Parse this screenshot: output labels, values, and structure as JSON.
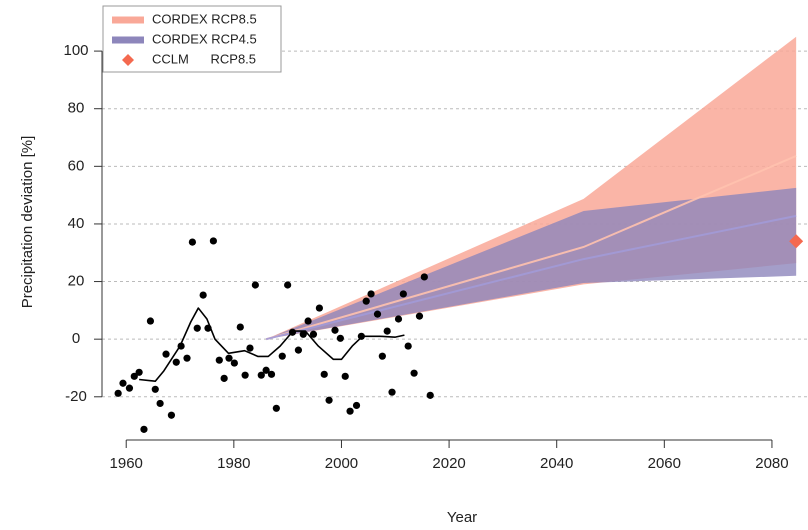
{
  "chart_data": {
    "type": "projection",
    "xlabel": "Year",
    "ylabel": "Precipitation deviation [%]",
    "xlim": [
      1955.5,
      2086.7
    ],
    "ylim": [
      -35,
      116
    ],
    "xticks": [
      1960,
      1980,
      2000,
      2020,
      2040,
      2060,
      2080
    ],
    "yticks": [
      -20,
      0,
      20,
      40,
      60,
      80,
      100
    ],
    "grid": true,
    "legend": "top-left",
    "series": [
      {
        "name": "CORDEX RCP8.5",
        "color": "#f9a898",
        "x": [
          1986,
          2045,
          2084.5
        ],
        "lower": [
          0,
          19,
          26.4
        ],
        "upper": [
          0,
          48.7,
          105
        ],
        "median": [
          0,
          32,
          63.6
        ]
      },
      {
        "name": "CORDEX RCP4.5",
        "color": "#8d86bb",
        "x": [
          1986,
          2045,
          2084.5
        ],
        "lower": [
          0,
          19.5,
          22
        ],
        "upper": [
          0,
          44.5,
          52.5
        ],
        "median": [
          0,
          27.8,
          42.8
        ]
      },
      {
        "name": "CCLM      RCP8.5",
        "color": "#f4694f",
        "x": [
          2084.5
        ],
        "values": [
          34
        ]
      }
    ],
    "points": {
      "color": "#000000",
      "x": [
        1958.5,
        1959.4,
        1960.6,
        1961.5,
        1962.4,
        1963.3,
        1964.5,
        1965.4,
        1966.3,
        1967.4,
        1968.4,
        1969.3,
        1970.2,
        1971.3,
        1972.3,
        1973.2,
        1974.3,
        1975.2,
        1976.2,
        1977.3,
        1978.2,
        1979.1,
        1980.1,
        1981.2,
        1982.1,
        1983.0,
        1984.0,
        1985.1,
        1986.0,
        1987.0,
        1987.9,
        1989.0,
        1990.0,
        1990.9,
        1992.0,
        1992.9,
        1993.8,
        1994.8,
        1995.9,
        1996.8,
        1997.7,
        1998.8,
        1999.8,
        2000.7,
        2001.6,
        2002.8,
        2003.7,
        2004.6,
        2005.5,
        2006.7,
        2007.6,
        2008.5,
        2009.4,
        2010.6,
        2011.5,
        2012.4,
        2013.5,
        2014.5,
        2015.4,
        2016.5
      ],
      "values": [
        -18.8,
        -15.3,
        -17,
        -12.9,
        -11.5,
        -31.3,
        6.3,
        -17.4,
        -22.3,
        -5.2,
        -26.4,
        -8,
        -2.4,
        -6.6,
        33.7,
        3.8,
        15.3,
        3.8,
        34.1,
        -7.3,
        -13.6,
        -6.6,
        -8.3,
        4.2,
        -12.5,
        -3.1,
        18.8,
        -12.5,
        -10.8,
        -12.2,
        -24,
        -5.9,
        18.8,
        2.4,
        -3.8,
        1.7,
        6.3,
        1.7,
        10.8,
        -12.2,
        -21.2,
        3.1,
        0.3,
        -12.9,
        -25,
        -23,
        1,
        13.2,
        15.7,
        8.7,
        -5.9,
        2.8,
        -18.4,
        7,
        15.7,
        -2.4,
        -11.8,
        8,
        21.6,
        -19.5
      ]
    },
    "smooth": {
      "color": "#000000",
      "x": [
        1962.4,
        1965.4,
        1967,
        1970,
        1972,
        1973.4,
        1975,
        1976.5,
        1979,
        1982,
        1984.5,
        1986.4,
        1988.6,
        1991,
        1993.3,
        1995.7,
        1998.5,
        2000,
        2002,
        2003.9,
        2007.2,
        2010,
        2011.7
      ],
      "values": [
        -14,
        -14.6,
        -11,
        -2.4,
        6,
        10.8,
        7,
        0,
        -4.9,
        -4,
        -6,
        -6,
        -2.4,
        2.8,
        2.8,
        -2.4,
        -7,
        -7,
        -2.4,
        1,
        1,
        0.7,
        1.4
      ]
    }
  }
}
